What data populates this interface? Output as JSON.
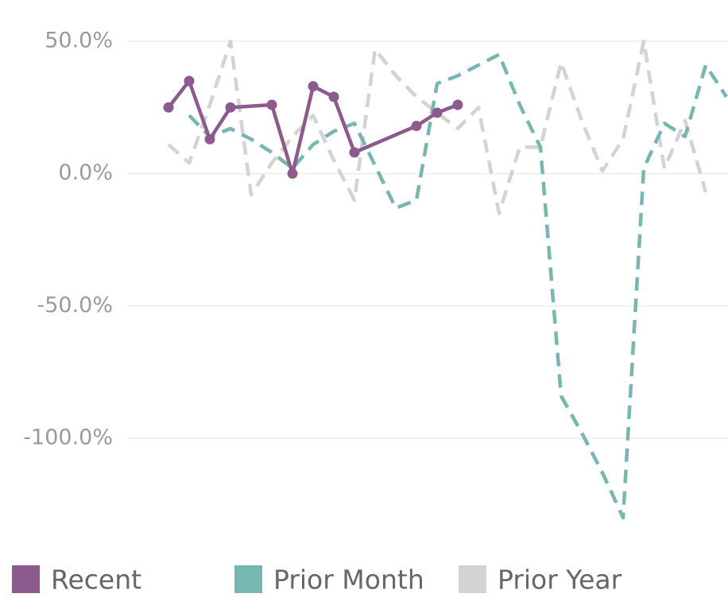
{
  "chart_data": {
    "type": "line",
    "xlim": [
      0,
      27
    ],
    "ylim": [
      -130,
      50
    ],
    "yticks": [
      {
        "value": 50,
        "label": "50.0%"
      },
      {
        "value": 0,
        "label": "0.0%"
      },
      {
        "value": -50,
        "label": "-50.0%"
      },
      {
        "value": -100,
        "label": "-100.0%"
      }
    ],
    "grid": true,
    "legend": "bottom",
    "series": [
      {
        "name": "Prior Year",
        "color": "#d3d3d3",
        "dashed": true,
        "x": [
          0,
          1,
          2,
          3,
          4,
          5,
          6,
          7,
          8,
          9,
          10,
          11,
          12,
          13,
          14,
          15,
          16,
          17,
          18,
          19,
          20,
          21,
          22,
          23,
          24,
          25,
          26
        ],
        "values": [
          11,
          4,
          26,
          50,
          -8,
          4,
          14,
          22,
          5,
          -10,
          47,
          37,
          29,
          23,
          17,
          25,
          -15,
          10,
          10,
          42,
          20,
          1,
          13,
          50,
          2,
          20,
          -7
        ]
      },
      {
        "name": "Prior Month",
        "color": "#76b7b2",
        "dashed": true,
        "x": [
          1,
          2,
          3,
          4,
          5,
          6,
          7,
          8,
          9,
          11,
          12,
          13,
          14,
          15,
          16,
          17,
          18,
          19,
          20,
          21,
          22,
          23,
          24,
          25,
          26,
          27
        ],
        "values": [
          22,
          14,
          17,
          13,
          8,
          2,
          11,
          16,
          19,
          -13,
          -10,
          34,
          37,
          41,
          45,
          26,
          10,
          -84,
          -98,
          -113,
          -130,
          2,
          19,
          14,
          41,
          29
        ]
      },
      {
        "name": "Recent",
        "color": "#8c5a8c",
        "dashed": false,
        "markers": true,
        "x": [
          0,
          1,
          2,
          3,
          5,
          6,
          7,
          8,
          9,
          12,
          13,
          14
        ],
        "values": [
          25,
          35,
          13,
          25,
          26,
          0,
          33,
          29,
          8,
          18,
          23,
          26
        ]
      }
    ],
    "legend_order": [
      "Recent",
      "Prior Month",
      "Prior Year"
    ]
  }
}
